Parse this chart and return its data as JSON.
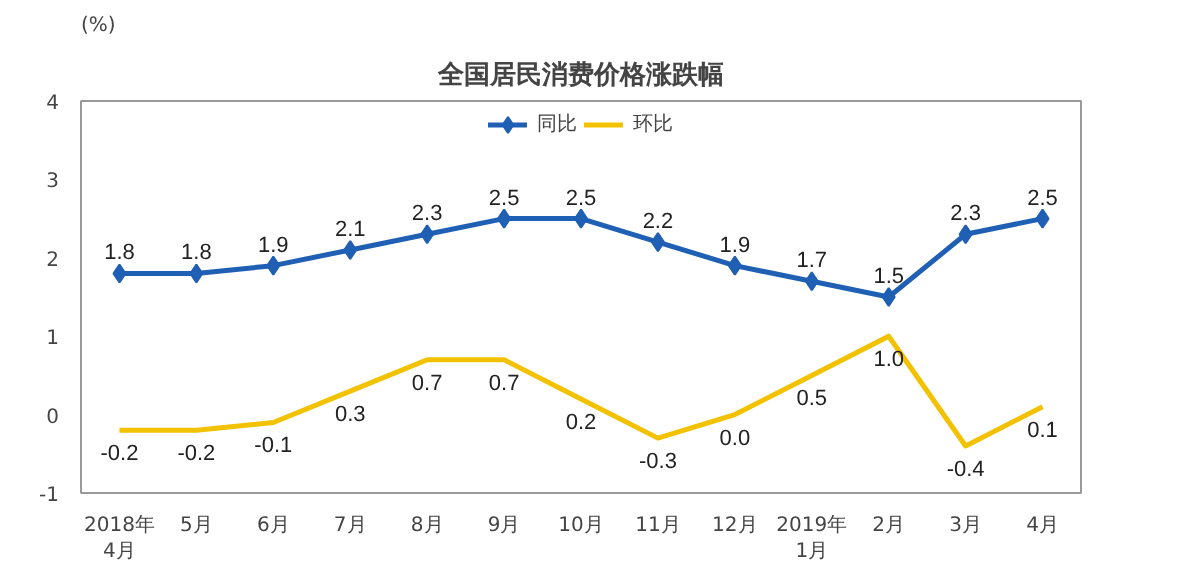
{
  "chart_data": {
    "type": "line",
    "title": "全国居民消费价格涨跌幅",
    "ylabel": "(%)",
    "categories": [
      "2018年\n4月",
      "5月",
      "6月",
      "7月",
      "8月",
      "9月",
      "10月",
      "11月",
      "12月",
      "2019年\n1月",
      "2月",
      "3月",
      "4月"
    ],
    "series": [
      {
        "name": "同比",
        "color": "#1f5fb4",
        "marker": "diamond",
        "values": [
          1.8,
          1.8,
          1.9,
          2.1,
          2.3,
          2.5,
          2.5,
          2.2,
          1.9,
          1.7,
          1.5,
          2.3,
          2.5
        ],
        "value_labels": [
          "1.8",
          "1.8",
          "1.9",
          "2.1",
          "2.3",
          "2.5",
          "2.5",
          "2.2",
          "1.9",
          "1.7",
          "1.5",
          "2.3",
          "2.5"
        ]
      },
      {
        "name": "环比",
        "color": "#f2c100",
        "marker": "none",
        "values": [
          -0.2,
          -0.2,
          -0.1,
          0.3,
          0.7,
          0.7,
          0.2,
          -0.3,
          0.0,
          0.5,
          1.0,
          -0.4,
          0.1
        ],
        "value_labels": [
          "-0.2",
          "-0.2",
          "-0.1",
          "0.3",
          "0.7",
          "0.7",
          "0.2",
          "-0.3",
          "0.0",
          "0.5",
          "1.0",
          "-0.4",
          "0.1"
        ]
      }
    ],
    "ylim": [
      -1,
      4
    ],
    "yticks": [
      -1,
      0,
      1,
      2,
      3,
      4
    ],
    "grid": false,
    "legend": "top",
    "line_style": "solid"
  }
}
